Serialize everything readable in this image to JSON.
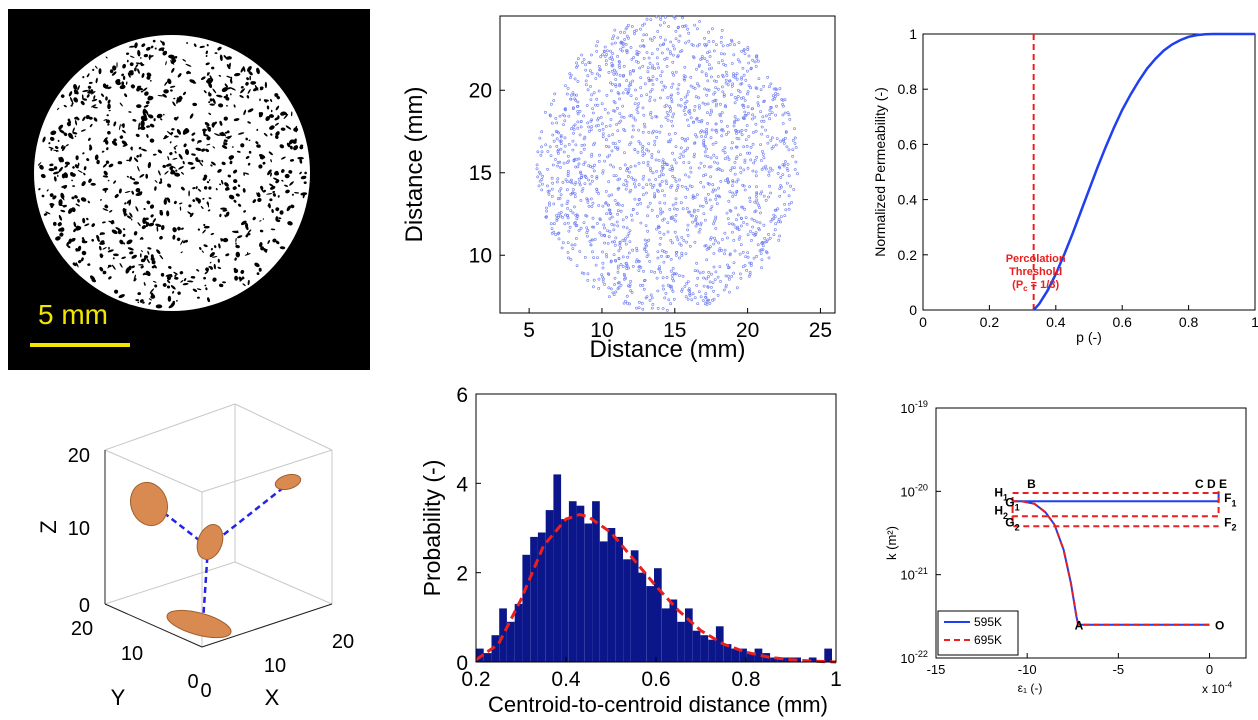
{
  "micrograph": {
    "scale_label": "5 mm",
    "colors": {
      "background": "#000000",
      "disc": "#ffffff",
      "pores": "#000000",
      "scalebar": "#f2e600"
    }
  },
  "chart_data": [
    {
      "id": "centroids",
      "type": "scatter",
      "title": "",
      "xlabel": "Distance (mm)",
      "ylabel": "Distance (mm)",
      "xlim": [
        3,
        26
      ],
      "ylim": [
        6.5,
        24.5
      ],
      "xticks": [
        "5",
        "10",
        "15",
        "20",
        "25"
      ],
      "yticks": [
        "10",
        "15",
        "20"
      ],
      "grid": false,
      "marker_color": "#6f7ef0",
      "cloud": {
        "shape": "disc",
        "center": [
          14.5,
          15.5
        ],
        "radius": 9.0,
        "approx_points": 1800
      }
    },
    {
      "id": "permeability",
      "type": "line",
      "xlabel": "p (-)",
      "ylabel": "Normalized Permeability (-)",
      "xlim": [
        0,
        1
      ],
      "ylim": [
        0,
        1
      ],
      "xticks": [
        "0",
        "0.2",
        "0.4",
        "0.6",
        "0.8",
        "1"
      ],
      "yticks": [
        "0",
        "0.2",
        "0.4",
        "0.6",
        "0.8",
        "1"
      ],
      "series": [
        {
          "color": "#1f3ff0",
          "x": [
            0.3333,
            0.35,
            0.375,
            0.4,
            0.425,
            0.45,
            0.475,
            0.5,
            0.525,
            0.55,
            0.575,
            0.6,
            0.625,
            0.65,
            0.675,
            0.7,
            0.725,
            0.75,
            0.775,
            0.8,
            0.825,
            0.85,
            0.875,
            0.9,
            0.95,
            1.0
          ],
          "y": [
            0.0,
            0.022,
            0.07,
            0.13,
            0.2,
            0.275,
            0.355,
            0.435,
            0.515,
            0.59,
            0.66,
            0.725,
            0.78,
            0.83,
            0.875,
            0.91,
            0.94,
            0.962,
            0.978,
            0.99,
            0.996,
            0.999,
            1.0,
            1.0,
            1.0,
            1.0
          ]
        }
      ],
      "threshold": {
        "x": 0.3333,
        "color": "#e8201f",
        "label_lines": [
          "Percolation",
          "Threshold",
          "(P",
          "c",
          " = 1/3)"
        ]
      }
    },
    {
      "id": "ellipsoids3d",
      "type": "scatter",
      "xlabel": "X",
      "ylabel": "Y",
      "zlabel": "Z",
      "xticks": [
        "0",
        "10",
        "20"
      ],
      "yticks": [
        "0",
        "10",
        "20"
      ],
      "zticks": [
        "0",
        "10",
        "20"
      ],
      "ellipsoid_color": "#d98a50",
      "link_color": "#2424e8"
    },
    {
      "id": "histogram",
      "type": "bar",
      "xlabel": "Centroid-to-centroid distance (mm)",
      "ylabel": "Probability (-)",
      "xlim": [
        0.2,
        1.0
      ],
      "ylim": [
        0,
        6
      ],
      "xticks": [
        "0.2",
        "0.4",
        "0.6",
        "0.8",
        "1"
      ],
      "yticks": [
        "0",
        "2",
        "4",
        "6"
      ],
      "bin_width": 0.0172,
      "bar_color": "#0b168a",
      "values": [
        0.3,
        0.2,
        0.6,
        1.2,
        0.9,
        1.3,
        2.4,
        2.8,
        2.9,
        3.4,
        4.2,
        3.2,
        3.6,
        3.5,
        3.1,
        3.6,
        2.7,
        3.0,
        2.8,
        2.3,
        2.5,
        2.0,
        1.7,
        2.1,
        1.2,
        1.4,
        0.9,
        1.2,
        0.7,
        0.6,
        0.5,
        0.8,
        0.4,
        0.3,
        0.3,
        0.2,
        0.3,
        0.2,
        0.1,
        0.1,
        0.1,
        0.1,
        0.0,
        0.1,
        0.0,
        0.3
      ],
      "fit": {
        "color": "#e8201f",
        "x": [
          0.2,
          0.25,
          0.3,
          0.35,
          0.4,
          0.43,
          0.45,
          0.5,
          0.55,
          0.6,
          0.65,
          0.7,
          0.75,
          0.8,
          0.85,
          0.9,
          0.95,
          1.0
        ],
        "y": [
          0.05,
          0.4,
          1.4,
          2.6,
          3.2,
          3.3,
          3.25,
          2.9,
          2.3,
          1.7,
          1.15,
          0.7,
          0.4,
          0.22,
          0.11,
          0.05,
          0.02,
          0.0
        ]
      }
    },
    {
      "id": "strain",
      "type": "line",
      "xlabel": "ε₁ (-)",
      "xscale_label": "x 10",
      "xscale_exp": "-4",
      "ylabel": "k (m²)",
      "yscale": "log",
      "xlim": [
        -15,
        2
      ],
      "ylim_exp": [
        -22,
        -19
      ],
      "xticks": [
        "-15",
        "-10",
        "-5",
        "0"
      ],
      "yticks": [
        {
          "base": "10",
          "exp": "-22"
        },
        {
          "base": "10",
          "exp": "-21"
        },
        {
          "base": "10",
          "exp": "-20"
        },
        {
          "base": "10",
          "exp": "-19"
        }
      ],
      "legend": {
        "placement": "bottom-left",
        "entries": [
          "595K",
          "695K"
        ]
      },
      "series": [
        {
          "name": "595K",
          "color": "#1f3ff0",
          "dash": false,
          "x": [
            0,
            -7.2,
            -7.3,
            -7.6,
            -8.0,
            -8.5,
            -9.0,
            -9.6,
            -10.3,
            -10.8,
            -10.0,
            0.5,
            0.5
          ],
          "log_k": [
            -21.6,
            -21.6,
            -21.5,
            -21.1,
            -20.7,
            -20.4,
            -20.25,
            -20.15,
            -20.12,
            -20.12,
            -20.12,
            -20.12,
            -20.0
          ]
        },
        {
          "name": "695K",
          "color": "#e8201f",
          "dash": true,
          "x": [
            0,
            -7.2,
            -7.3,
            -7.6,
            -8.0,
            -8.5,
            -9.0,
            -9.6,
            -10.3,
            -10.8,
            -10.8,
            0.5,
            0.5,
            -10.8,
            -10.8,
            0.5
          ],
          "log_k": [
            -21.6,
            -21.6,
            -21.5,
            -21.1,
            -20.7,
            -20.4,
            -20.25,
            -20.15,
            -20.12,
            -20.12,
            -20.3,
            -20.3,
            -20.02,
            -20.02,
            -20.42,
            -20.42
          ]
        }
      ],
      "point_labels": [
        {
          "text": "B",
          "x": -10.0,
          "log_k": -19.96
        },
        {
          "text": "C D E",
          "x": -0.8,
          "log_k": -19.96
        },
        {
          "text": "A",
          "x": -7.4,
          "log_k": -21.66
        },
        {
          "text": "O",
          "x": 0.3,
          "log_k": -21.66
        }
      ],
      "subscript_labels": [
        {
          "base": "H",
          "sub": "1",
          "x": -11.8,
          "log_k": -20.06
        },
        {
          "base": "G",
          "sub": "1",
          "x": -11.2,
          "log_k": -20.18
        },
        {
          "base": "H",
          "sub": "2",
          "x": -11.8,
          "log_k": -20.28
        },
        {
          "base": "G",
          "sub": "2",
          "x": -11.2,
          "log_k": -20.42
        },
        {
          "base": "F",
          "sub": "1",
          "x": 0.8,
          "log_k": -20.13
        },
        {
          "base": "F",
          "sub": "2",
          "x": 0.8,
          "log_k": -20.42
        }
      ]
    }
  ]
}
